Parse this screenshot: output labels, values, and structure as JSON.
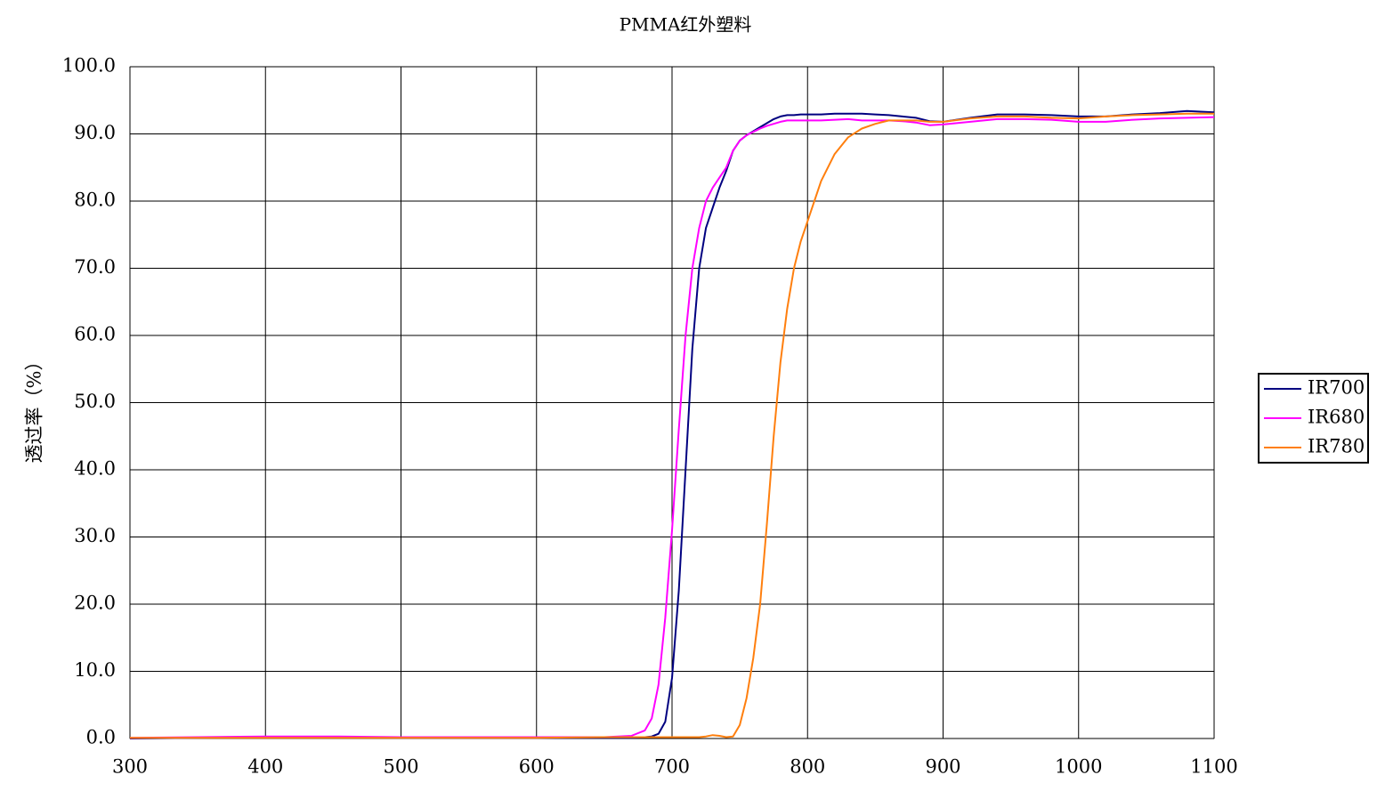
{
  "chart_data": {
    "type": "line",
    "title": "PMMA红外塑料",
    "y_label": "透过率（%）",
    "x": [
      300,
      350,
      400,
      450,
      500,
      550,
      600,
      650,
      670,
      680,
      685,
      690,
      695,
      700,
      705,
      710,
      715,
      720,
      725,
      730,
      735,
      740,
      745,
      750,
      755,
      760,
      765,
      770,
      775,
      780,
      785,
      790,
      795,
      800,
      810,
      820,
      830,
      840,
      850,
      860,
      870,
      880,
      890,
      900,
      920,
      940,
      960,
      980,
      1000,
      1020,
      1040,
      1060,
      1080,
      1100
    ],
    "series": [
      {
        "name": "IR700",
        "color": "#000080",
        "values": [
          0,
          0.1,
          0.2,
          0.2,
          0.1,
          0.1,
          0.1,
          0.1,
          0.1,
          0.2,
          0.3,
          0.7,
          2.5,
          9,
          22,
          40,
          58,
          70,
          76,
          79,
          82,
          84.5,
          87.5,
          89,
          89.8,
          90.4,
          91,
          91.6,
          92.2,
          92.6,
          92.8,
          92.8,
          92.9,
          92.9,
          92.9,
          93,
          93,
          93,
          92.9,
          92.8,
          92.6,
          92.4,
          91.9,
          91.8,
          92.4,
          92.9,
          92.9,
          92.8,
          92.6,
          92.6,
          92.9,
          93.1,
          93.4,
          93.2
        ]
      },
      {
        "name": "IR680",
        "color": "#ff00ff",
        "values": [
          0.1,
          0.2,
          0.3,
          0.3,
          0.2,
          0.2,
          0.2,
          0.2,
          0.4,
          1.2,
          3,
          8,
          18,
          31,
          46,
          60,
          70,
          76,
          80,
          82,
          83.5,
          85,
          87.5,
          89,
          89.8,
          90.3,
          90.8,
          91.2,
          91.5,
          91.8,
          92,
          92,
          92,
          92,
          92,
          92.1,
          92.2,
          92,
          92,
          92,
          91.9,
          91.7,
          91.3,
          91.4,
          91.8,
          92.2,
          92.2,
          92.1,
          91.8,
          91.8,
          92.1,
          92.3,
          92.4,
          92.5
        ]
      },
      {
        "name": "IR780",
        "color": "#ff7f0e",
        "values": [
          0.1,
          0.1,
          0.1,
          0.1,
          0.1,
          0.1,
          0.1,
          0.2,
          0.2,
          0.2,
          0.2,
          0.2,
          0.2,
          0.2,
          0.2,
          0.2,
          0.2,
          0.2,
          0.3,
          0.5,
          0.4,
          0.2,
          0.3,
          2,
          6,
          12,
          20,
          32,
          45,
          56,
          64,
          70,
          74,
          77,
          83,
          87,
          89.5,
          90.8,
          91.5,
          92,
          92,
          92,
          91.8,
          91.8,
          92.3,
          92.6,
          92.6,
          92.4,
          92.3,
          92.6,
          92.8,
          92.9,
          93,
          93
        ]
      }
    ],
    "xlim": [
      300,
      1100
    ],
    "xticks": [
      300,
      400,
      500,
      600,
      700,
      800,
      900,
      1000,
      1100
    ],
    "ylim": [
      0,
      100
    ],
    "yticks": [
      {
        "value": 0,
        "label": "0.0"
      },
      {
        "value": 10,
        "label": "10.0"
      },
      {
        "value": 20,
        "label": "20.0"
      },
      {
        "value": 30,
        "label": "30.0"
      },
      {
        "value": 40,
        "label": "40.0"
      },
      {
        "value": 50,
        "label": "50.0"
      },
      {
        "value": 60,
        "label": "60.0"
      },
      {
        "value": 70,
        "label": "70.0"
      },
      {
        "value": 80,
        "label": "80.0"
      },
      {
        "value": 90,
        "label": "90.0"
      },
      {
        "value": 100,
        "label": "100.0"
      }
    ],
    "grid": true,
    "legend": "right"
  }
}
